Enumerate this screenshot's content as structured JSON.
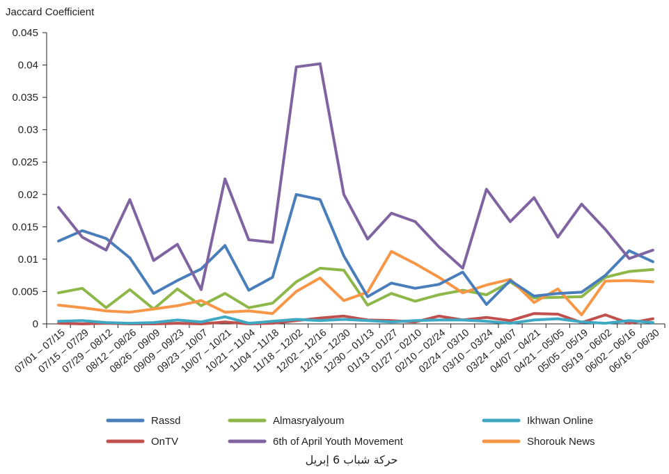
{
  "chart_data": {
    "type": "line",
    "title": "",
    "caption": "حركة شباب 6 إبريل",
    "ylabel": "Jaccard Coefficient",
    "xlabel": "",
    "ylim": [
      0,
      0.045
    ],
    "yticks": [
      0,
      0.005,
      0.01,
      0.015,
      0.02,
      0.025,
      0.03,
      0.035,
      0.04,
      0.045
    ],
    "ytick_labels": [
      "0",
      "0.005",
      "0.01",
      "0.015",
      "0.02",
      "0.025",
      "0.03",
      "0.035",
      "0.04",
      "0.045"
    ],
    "grid": false,
    "legend_position": "bottom",
    "categories": [
      "07/01 – 07/15",
      "07/15 – 07/29",
      "07/29 – 08/12",
      "08/12 – 08/26",
      "08/26 – 09/09",
      "09/09 – 09/23",
      "09/23 – 10/07",
      "10/07 – 10/21",
      "10/21 – 11/04",
      "11/04 – 11/18",
      "11/18 – 12/02",
      "12/02 – 12/16",
      "12/16 – 12/30",
      "12/30 – 01/13",
      "01/13 – 01/27",
      "01/27 – 02/10",
      "02/10 – 02/24",
      "02/24 – 03/10",
      "03/10 – 03/24",
      "03/24 – 04/07",
      "04/07 – 04/21",
      "04/21 – 05/05",
      "05/05 – 05/19",
      "05/19 – 06/02",
      "06/02 – 06/16",
      "06/16 – 06/30"
    ],
    "series": [
      {
        "name": "Rassd",
        "color": "#4a7ebb",
        "values": [
          0.0128,
          0.0144,
          0.0132,
          0.0102,
          0.0047,
          0.0067,
          0.0085,
          0.0121,
          0.0052,
          0.0072,
          0.02,
          0.0192,
          0.0105,
          0.0042,
          0.0063,
          0.0055,
          0.0061,
          0.008,
          0.003,
          0.0067,
          0.0043,
          0.0047,
          0.0049,
          0.0075,
          0.0113,
          0.0096
        ]
      },
      {
        "name": "Almasryalyoum",
        "color": "#8db849",
        "values": [
          0.0048,
          0.0055,
          0.0025,
          0.0053,
          0.0023,
          0.0054,
          0.0028,
          0.0047,
          0.0025,
          0.0032,
          0.0065,
          0.0086,
          0.0083,
          0.0029,
          0.0047,
          0.0035,
          0.0045,
          0.0052,
          0.0045,
          0.0065,
          0.004,
          0.0041,
          0.0042,
          0.0072,
          0.0081,
          0.0084
        ]
      },
      {
        "name": "Ikhwan Online",
        "color": "#3fa9c4",
        "values": [
          0.0004,
          0.0005,
          0.0002,
          0.0001,
          0.0002,
          0.0006,
          0.0003,
          0.0011,
          0.0001,
          0.0004,
          0.0007,
          0.0005,
          0.0007,
          0.0005,
          0.0003,
          0.0005,
          0.0006,
          0.0006,
          0.0004,
          0.0001,
          0.0006,
          0.0008,
          0.0003,
          0.0001,
          0.0005,
          0.0002
        ]
      },
      {
        "name": "OnTV",
        "color": "#c0504d",
        "values": [
          0.0001,
          0.0,
          0.0001,
          0.0,
          0.0,
          0.0001,
          0.0,
          0.0003,
          0.0,
          0.0001,
          0.0005,
          0.0009,
          0.0012,
          0.0006,
          0.0005,
          0.0003,
          0.0012,
          0.0006,
          0.001,
          0.0005,
          0.0016,
          0.0015,
          0.0002,
          0.0014,
          0.0001,
          0.0008
        ]
      },
      {
        "name": "6th of April Youth Movement",
        "color": "#8064a2",
        "values": [
          0.018,
          0.0134,
          0.0114,
          0.0192,
          0.0098,
          0.0123,
          0.0053,
          0.0224,
          0.013,
          0.0126,
          0.0397,
          0.0402,
          0.02,
          0.0131,
          0.0171,
          0.0158,
          0.0119,
          0.0086,
          0.0208,
          0.0158,
          0.0195,
          0.0134,
          0.0185,
          0.0146,
          0.0101,
          0.0114
        ]
      },
      {
        "name": "Shorouk News",
        "color": "#f79646",
        "values": [
          0.0029,
          0.0025,
          0.002,
          0.0018,
          0.0023,
          0.0028,
          0.0036,
          0.0018,
          0.002,
          0.0016,
          0.005,
          0.0071,
          0.0036,
          0.0049,
          0.0112,
          0.0093,
          0.0072,
          0.0048,
          0.006,
          0.0069,
          0.0033,
          0.0054,
          0.0014,
          0.0066,
          0.0067,
          0.0065
        ]
      }
    ],
    "legend_order": [
      "Rassd",
      "Almasryalyoum",
      "Ikhwan Online",
      "OnTV",
      "6th of April Youth Movement",
      "Shorouk News"
    ]
  }
}
